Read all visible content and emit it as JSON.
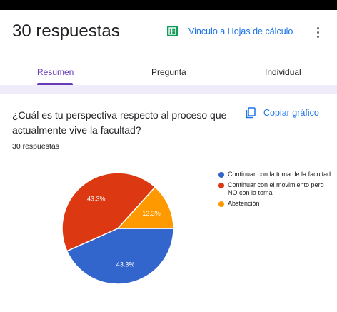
{
  "header": {
    "title": "30 respuestas",
    "sheets_link": "Vinculo a Hojas de cálculo"
  },
  "tabs": [
    {
      "label": "Resumen",
      "active": true
    },
    {
      "label": "Pregunta",
      "active": false
    },
    {
      "label": "Individual",
      "active": false
    }
  ],
  "question": {
    "text": "¿Cuál es tu perspectiva respecto al proceso que actualmente vive la facultad?",
    "count": "30 respuestas",
    "copy_label": "Copiar gráfico"
  },
  "colors": {
    "accent": "#673ab7",
    "link": "#1a73e8",
    "sheets": "#0f9d58"
  },
  "chart_data": {
    "type": "pie",
    "title": "",
    "slices": [
      {
        "label": "Continuar con la toma de la facultad",
        "value": 43.3,
        "display": "43.3%",
        "color": "#3366cc"
      },
      {
        "label": "Continuar con el movimiento pero NO con la toma",
        "value": 43.3,
        "display": "43.3%",
        "color": "#dc3912"
      },
      {
        "label": "Abstención",
        "value": 13.3,
        "display": "13.3%",
        "color": "#ff9900"
      }
    ],
    "legend_position": "right"
  }
}
